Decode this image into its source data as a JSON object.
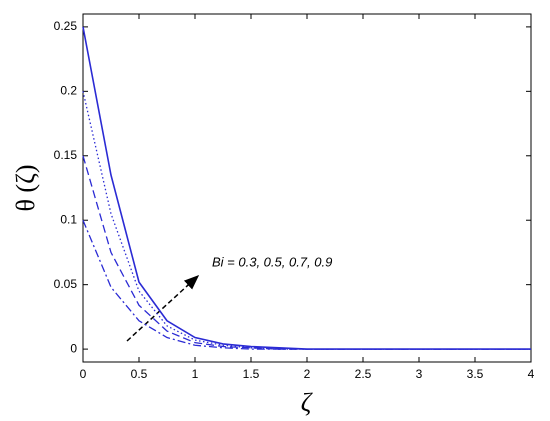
{
  "chart_data": {
    "type": "line",
    "x_label": "ζ",
    "y_label": "θ (ζ)",
    "annotation": "Bi = 0.3, 0.5, 0.7, 0.9",
    "x": [
      0,
      0.25,
      0.5,
      0.75,
      1,
      1.25,
      1.5,
      1.75,
      2,
      2.5,
      3,
      3.5,
      4
    ],
    "series": [
      {
        "color": "#2b2bd4",
        "dash": "dashdot",
        "values": [
          0.1,
          0.048,
          0.022,
          0.009,
          0.003,
          0.001,
          0,
          0,
          0,
          0,
          0,
          0,
          0
        ]
      },
      {
        "color": "#2b2bd4",
        "dash": "dashed",
        "values": [
          0.15,
          0.075,
          0.034,
          0.014,
          0.005,
          0.002,
          0.001,
          0,
          0,
          0,
          0,
          0,
          0
        ]
      },
      {
        "color": "#2b2bd4",
        "dash": "dotted",
        "values": [
          0.2,
          0.105,
          0.045,
          0.018,
          0.007,
          0.003,
          0.001,
          0,
          0,
          0,
          0,
          0,
          0
        ]
      },
      {
        "color": "#2b2bd4",
        "dash": "solid",
        "values": [
          0.25,
          0.135,
          0.052,
          0.022,
          0.009,
          0.004,
          0.002,
          0.001,
          0,
          0,
          0,
          0,
          0
        ]
      }
    ],
    "xlim": [
      0,
      4
    ],
    "ylim": [
      -0.01,
      0.26
    ],
    "xticks": [
      0,
      0.5,
      1,
      1.5,
      2,
      2.5,
      3,
      3.5,
      4
    ],
    "yticks": [
      0,
      0.05,
      0.1,
      0.15,
      0.2,
      0.25
    ],
    "grid": false
  }
}
